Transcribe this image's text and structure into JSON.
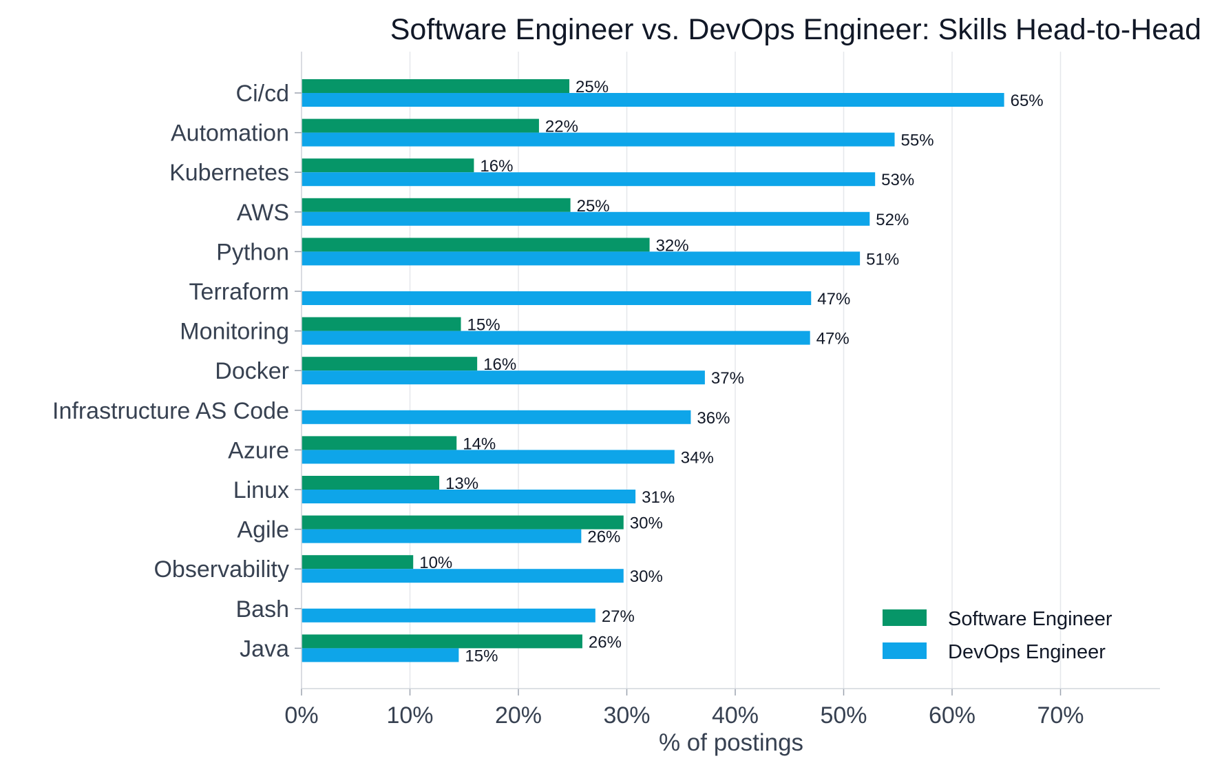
{
  "chart_data": {
    "type": "bar",
    "orientation": "horizontal",
    "title": "Software Engineer vs. DevOps Engineer: Skills Head-to-Head",
    "xlabel": "% of postings",
    "ylabel": "",
    "xlim": [
      0,
      79
    ],
    "xticks": [
      0,
      10,
      20,
      30,
      40,
      50,
      60,
      70
    ],
    "xtick_labels": [
      "0%",
      "10%",
      "20%",
      "30%",
      "40%",
      "50%",
      "60%",
      "70%"
    ],
    "grid": "vertical",
    "legend_position": "bottom-right",
    "categories": [
      "Ci/cd",
      "Automation",
      "Kubernetes",
      "AWS",
      "Python",
      "Terraform",
      "Monitoring",
      "Docker",
      "Infrastructure AS Code",
      "Azure",
      "Linux",
      "Agile",
      "Observability",
      "Bash",
      "Java"
    ],
    "series": [
      {
        "name": "Software Engineer",
        "color": "#069668",
        "values": [
          24.7,
          21.9,
          15.9,
          24.8,
          32.1,
          null,
          14.7,
          16.2,
          null,
          14.3,
          12.7,
          29.7,
          10.3,
          null,
          25.9
        ],
        "labels": [
          "25%",
          "22%",
          "16%",
          "25%",
          "32%",
          "",
          "15%",
          "16%",
          "",
          "14%",
          "13%",
          "30%",
          "10%",
          "",
          "26%"
        ]
      },
      {
        "name": "DevOps Engineer",
        "color": "#0ea5e9",
        "values": [
          64.8,
          54.7,
          52.9,
          52.4,
          51.5,
          47.0,
          46.9,
          37.2,
          35.9,
          34.4,
          30.8,
          25.8,
          29.7,
          27.1,
          14.5
        ],
        "labels": [
          "65%",
          "55%",
          "53%",
          "52%",
          "51%",
          "47%",
          "47%",
          "37%",
          "36%",
          "34%",
          "31%",
          "26%",
          "30%",
          "27%",
          "15%"
        ]
      }
    ]
  }
}
